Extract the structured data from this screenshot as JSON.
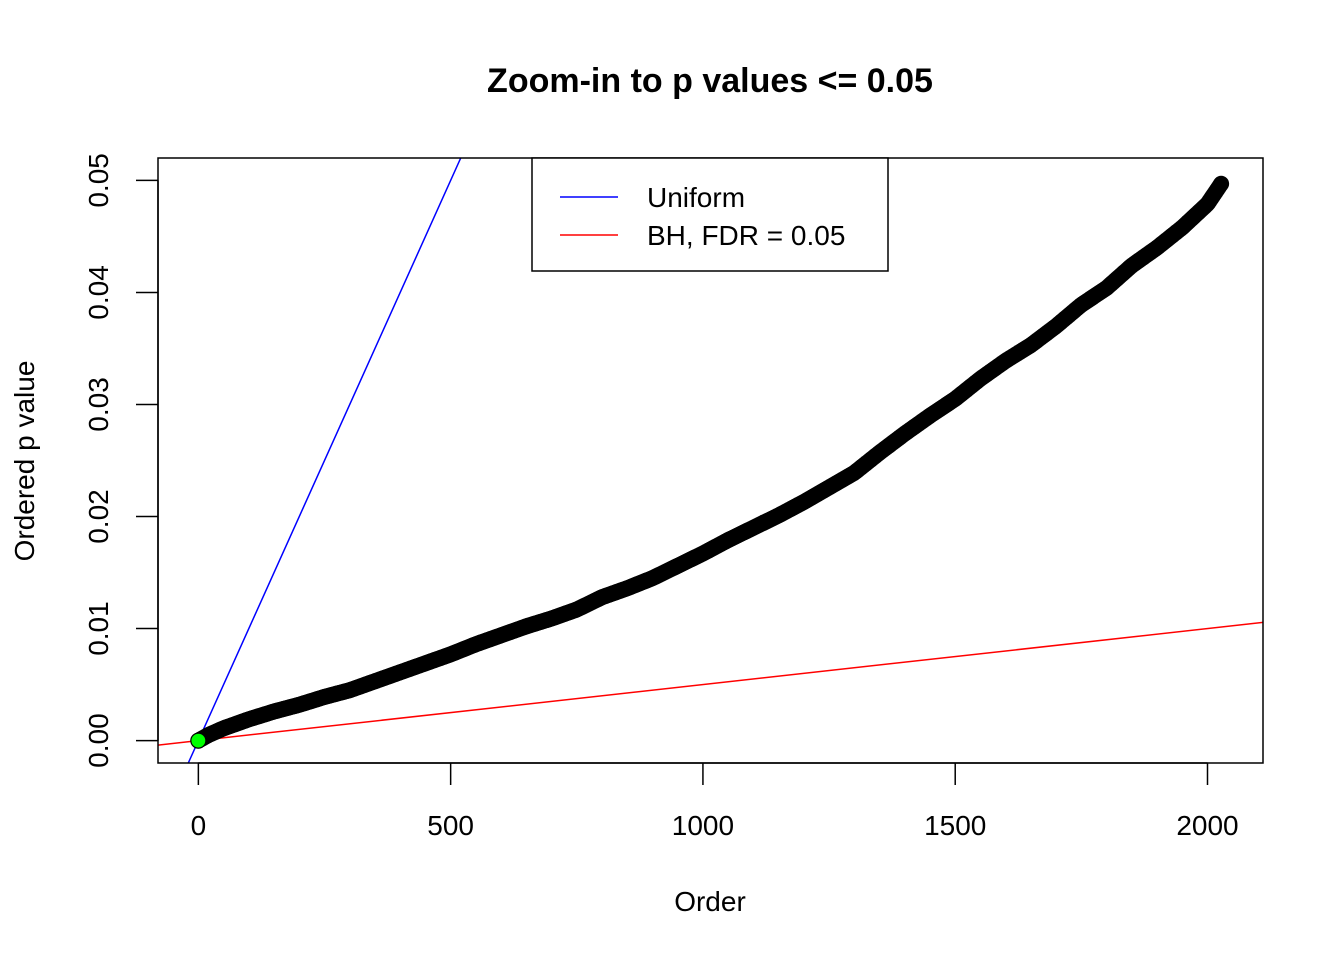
{
  "chart_data": {
    "type": "scatter",
    "title": "Zoom-in to p values <= 0.05",
    "xlabel": "Order",
    "ylabel": "Ordered p value",
    "xlim": [
      -80,
      2110
    ],
    "ylim": [
      -0.002,
      0.052
    ],
    "x_ticks": [
      0,
      500,
      1000,
      1500,
      2000
    ],
    "x_tick_labels": [
      "0",
      "500",
      "1000",
      "1500",
      "2000"
    ],
    "y_ticks": [
      0,
      0.01,
      0.02,
      0.03,
      0.04,
      0.05
    ],
    "y_tick_labels": [
      "0.00",
      "0.01",
      "0.02",
      "0.03",
      "0.04",
      "0.05"
    ],
    "grid": false,
    "legend_position": "top-center",
    "legend": [
      {
        "label": "Uniform",
        "color": "#0000ff"
      },
      {
        "label": "BH, FDR = 0.05",
        "color": "#ff0000"
      }
    ],
    "series": [
      {
        "kind": "points",
        "color": "#000000",
        "x": [
          0,
          20,
          50,
          100,
          150,
          200,
          250,
          300,
          350,
          400,
          450,
          500,
          550,
          600,
          650,
          700,
          750,
          800,
          850,
          900,
          950,
          1000,
          1050,
          1100,
          1150,
          1200,
          1250,
          1300,
          1350,
          1400,
          1450,
          1500,
          1550,
          1600,
          1650,
          1700,
          1750,
          1800,
          1850,
          1900,
          1950,
          2000,
          2027
        ],
        "y": [
          0.0,
          0.0005,
          0.0011,
          0.0019,
          0.0026,
          0.0032,
          0.0039,
          0.0045,
          0.0053,
          0.0061,
          0.0069,
          0.0077,
          0.0086,
          0.0094,
          0.0102,
          0.0109,
          0.0117,
          0.0128,
          0.0136,
          0.0145,
          0.0156,
          0.0167,
          0.0179,
          0.019,
          0.0201,
          0.0213,
          0.0226,
          0.0239,
          0.0257,
          0.0274,
          0.029,
          0.0305,
          0.0323,
          0.0339,
          0.0353,
          0.037,
          0.0389,
          0.0404,
          0.0424,
          0.044,
          0.0458,
          0.0479,
          0.0497
        ]
      },
      {
        "kind": "highlight-point",
        "color": "#00ff00",
        "x": [
          0
        ],
        "y": [
          0.0
        ]
      },
      {
        "kind": "line",
        "name": "Uniform",
        "color": "#0000ff",
        "x": [
          -20,
          520
        ],
        "y": [
          -0.002,
          0.052
        ]
      },
      {
        "kind": "line",
        "name": "BH, FDR = 0.05",
        "color": "#ff0000",
        "x": [
          -80,
          2110
        ],
        "y": [
          -0.0004,
          0.01055
        ]
      }
    ]
  }
}
